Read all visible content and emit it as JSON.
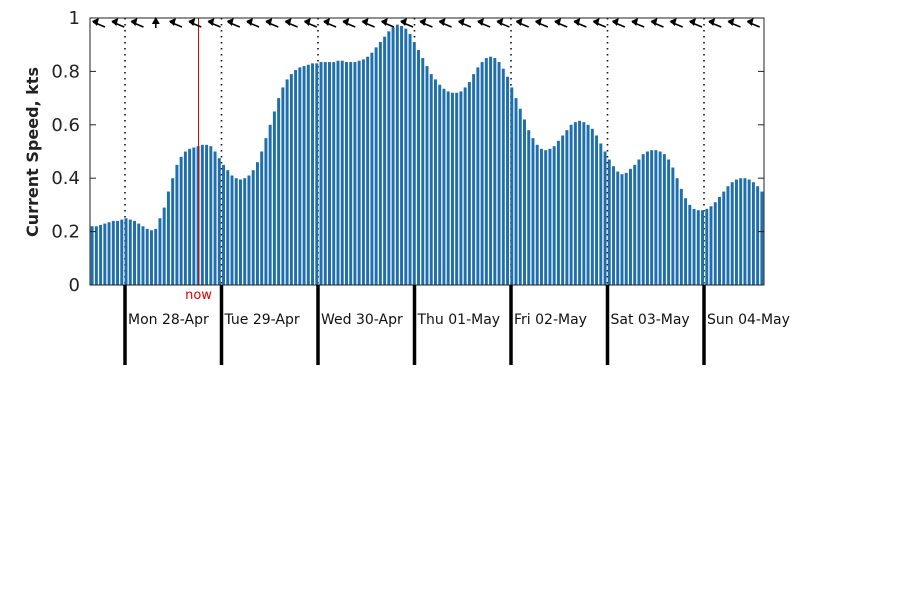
{
  "chart_data": {
    "type": "bar",
    "ylabel": "Current Speed, kts",
    "ylim": [
      0,
      1
    ],
    "yticks": [
      "0",
      "0.2",
      "0.4",
      "0.6",
      "0.8",
      "1"
    ],
    "bar_color": "#1f6fae",
    "now_color": "#e00000",
    "now_label": "now",
    "days": [
      "Mon 28-Apr",
      "Tue 29-Apr",
      "Wed 30-Apr",
      "Thu 01-May",
      "Fri 02-May",
      "Sat 03-May",
      "Sun 04-May"
    ],
    "grid": "dotted vertical at day boundaries",
    "series": [
      {
        "values": [
          0.22,
          0.22,
          0.225,
          0.23,
          0.235,
          0.24,
          0.24,
          0.245,
          0.25,
          0.245,
          0.24,
          0.23,
          0.22,
          0.21,
          0.205,
          0.21,
          0.25,
          0.29,
          0.35,
          0.4,
          0.45,
          0.48,
          0.5,
          0.51,
          0.515,
          0.52,
          0.525,
          0.525,
          0.52,
          0.5,
          0.475,
          0.45,
          0.43,
          0.41,
          0.4,
          0.395,
          0.4,
          0.41,
          0.43,
          0.46,
          0.5,
          0.55,
          0.6,
          0.65,
          0.7,
          0.74,
          0.77,
          0.79,
          0.805,
          0.815,
          0.82,
          0.825,
          0.83,
          0.83,
          0.835,
          0.835,
          0.835,
          0.835,
          0.84,
          0.84,
          0.835,
          0.835,
          0.835,
          0.84,
          0.845,
          0.855,
          0.87,
          0.89,
          0.91,
          0.93,
          0.95,
          0.965,
          0.975,
          0.97,
          0.96,
          0.94,
          0.91,
          0.88,
          0.85,
          0.82,
          0.79,
          0.77,
          0.75,
          0.735,
          0.725,
          0.72,
          0.72,
          0.725,
          0.74,
          0.76,
          0.79,
          0.815,
          0.835,
          0.85,
          0.855,
          0.85,
          0.835,
          0.81,
          0.78,
          0.74,
          0.7,
          0.66,
          0.62,
          0.58,
          0.55,
          0.525,
          0.51,
          0.505,
          0.51,
          0.52,
          0.54,
          0.56,
          0.58,
          0.6,
          0.61,
          0.615,
          0.61,
          0.6,
          0.585,
          0.56,
          0.53,
          0.5,
          0.47,
          0.445,
          0.425,
          0.415,
          0.42,
          0.435,
          0.45,
          0.47,
          0.49,
          0.5,
          0.505,
          0.505,
          0.5,
          0.49,
          0.47,
          0.44,
          0.4,
          0.36,
          0.325,
          0.3,
          0.285,
          0.28,
          0.28,
          0.285,
          0.295,
          0.31,
          0.33,
          0.35,
          0.37,
          0.385,
          0.395,
          0.4,
          0.4,
          0.395,
          0.385,
          0.37,
          0.35
        ]
      }
    ],
    "direction_arrows": [
      "W",
      "W",
      "W",
      "N",
      "W",
      "W",
      "W",
      "W",
      "W",
      "W",
      "W",
      "W",
      "W",
      "W",
      "W",
      "W",
      "W",
      "W",
      "W",
      "W",
      "W",
      "W",
      "W",
      "W",
      "W",
      "W",
      "W",
      "W",
      "W",
      "W",
      "W",
      "W",
      "W",
      "W",
      "W"
    ]
  }
}
